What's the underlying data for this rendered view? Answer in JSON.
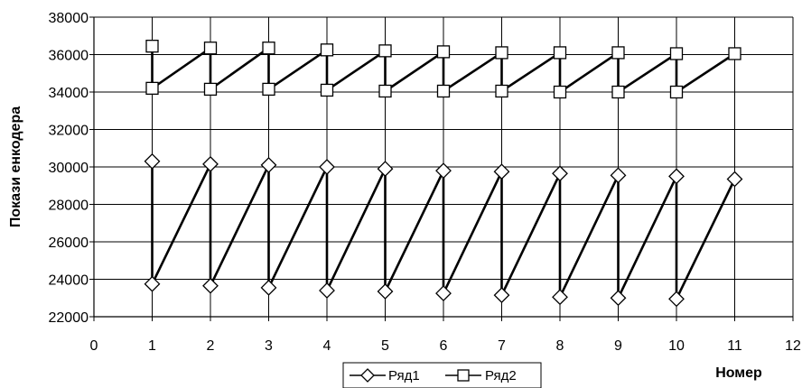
{
  "chart_data": {
    "type": "line",
    "title": "",
    "xlabel": "Номер",
    "ylabel": "Покази енкодера",
    "xlim": [
      0,
      12
    ],
    "ylim": [
      22000,
      38000
    ],
    "x_ticks": [
      "0",
      "1",
      "2",
      "3",
      "4",
      "5",
      "6",
      "7",
      "8",
      "9",
      "10",
      "11",
      "12"
    ],
    "y_ticks": [
      "22000",
      "24000",
      "26000",
      "28000",
      "30000",
      "32000",
      "34000",
      "36000",
      "38000"
    ],
    "grid": true,
    "legend_position": "bottom",
    "series": [
      {
        "name": "Ряд1",
        "marker": "diamond",
        "color": "#000000",
        "points": [
          [
            1,
            30300
          ],
          [
            1,
            23750
          ],
          [
            2,
            30150
          ],
          [
            2,
            23650
          ],
          [
            3,
            30100
          ],
          [
            3,
            23550
          ],
          [
            4,
            30000
          ],
          [
            4,
            23400
          ],
          [
            5,
            29900
          ],
          [
            5,
            23350
          ],
          [
            6,
            29800
          ],
          [
            6,
            23250
          ],
          [
            7,
            29750
          ],
          [
            7,
            23150
          ],
          [
            8,
            29650
          ],
          [
            8,
            23050
          ],
          [
            9,
            29550
          ],
          [
            9,
            23000
          ],
          [
            10,
            29500
          ],
          [
            10,
            22950
          ],
          [
            11,
            29350
          ]
        ]
      },
      {
        "name": "Ряд2",
        "marker": "square",
        "color": "#000000",
        "points": [
          [
            1,
            36450
          ],
          [
            1,
            34200
          ],
          [
            2,
            36350
          ],
          [
            2,
            34150
          ],
          [
            3,
            36350
          ],
          [
            3,
            34150
          ],
          [
            4,
            36250
          ],
          [
            4,
            34100
          ],
          [
            5,
            36200
          ],
          [
            5,
            34050
          ],
          [
            6,
            36150
          ],
          [
            6,
            34050
          ],
          [
            7,
            36100
          ],
          [
            7,
            34050
          ],
          [
            8,
            36100
          ],
          [
            8,
            34000
          ],
          [
            9,
            36100
          ],
          [
            9,
            34000
          ],
          [
            10,
            36050
          ],
          [
            10,
            34000
          ],
          [
            11,
            36050
          ]
        ]
      }
    ]
  }
}
